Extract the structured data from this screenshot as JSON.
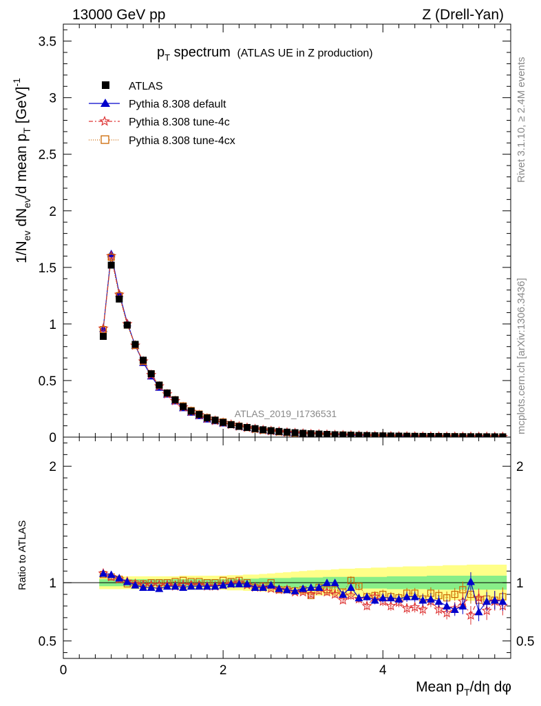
{
  "header": {
    "energy": "13000 GeV pp",
    "process": "Z (Drell-Yan)"
  },
  "side_text": {
    "rivet": "Rivet 3.1.10, ≥ 2.4M events",
    "mcplots": "mcplots.cern.ch [arXiv:1306.3436]"
  },
  "colors": {
    "atlas": "#000000",
    "default": "#0000cc",
    "tune4c": "#dd3333",
    "tune4cx": "#cc6600",
    "band_inner": "#88ee88",
    "band_outer": "#ffff88"
  },
  "chart_data": [
    {
      "type": "line",
      "panel": "main",
      "title_main": "p",
      "title_sub": "T",
      "title_rest": " spectrum",
      "title_note": "(ATLAS UE in Z production)",
      "ylabel": "1/N_ev dN_ev/d mean p_T [GeV]^-1",
      "analysis_label": "ATLAS_2019_I1736531",
      "xlim": [
        0,
        5.6
      ],
      "ylim": [
        0,
        3.65
      ],
      "yticks": [
        0,
        0.5,
        1,
        1.5,
        2,
        2.5,
        3,
        3.5
      ],
      "ytick_labels": [
        "0",
        "0.5",
        "1",
        "1.5",
        "2",
        "2.5",
        "3",
        "3.5"
      ],
      "legend_position": "top-left",
      "x": [
        0.5,
        0.6,
        0.7,
        0.8,
        0.9,
        1.0,
        1.1,
        1.2,
        1.3,
        1.4,
        1.5,
        1.6,
        1.7,
        1.8,
        1.9,
        2.0,
        2.1,
        2.2,
        2.3,
        2.4,
        2.5,
        2.6,
        2.7,
        2.8,
        2.9,
        3.0,
        3.1,
        3.2,
        3.3,
        3.4,
        3.5,
        3.6,
        3.7,
        3.8,
        3.9,
        4.0,
        4.1,
        4.2,
        4.3,
        4.4,
        4.5,
        4.6,
        4.7,
        4.8,
        4.9,
        5.0,
        5.1,
        5.2,
        5.3,
        5.4,
        5.5
      ],
      "series": [
        {
          "name": "ATLAS",
          "marker": "square",
          "values": [
            0.89,
            1.52,
            1.22,
            0.99,
            0.82,
            0.68,
            0.56,
            0.46,
            0.39,
            0.33,
            0.27,
            0.23,
            0.2,
            0.17,
            0.15,
            0.13,
            0.11,
            0.095,
            0.085,
            0.075,
            0.065,
            0.057,
            0.05,
            0.044,
            0.039,
            0.034,
            0.03,
            0.027,
            0.024,
            0.021,
            0.019,
            0.017,
            0.015,
            0.014,
            0.012,
            0.011,
            0.01,
            0.009,
            0.008,
            0.007,
            0.0065,
            0.006,
            0.0055,
            0.005,
            0.0045,
            0.004,
            0.0037,
            0.0034,
            0.0031,
            0.0028,
            0.0025
          ]
        },
        {
          "name": "Pythia 8.308 default",
          "marker": "triangle",
          "values": [
            0.96,
            1.62,
            1.27,
            1.01,
            0.81,
            0.66,
            0.54,
            0.44,
            0.38,
            0.32,
            0.26,
            0.22,
            0.19,
            0.16,
            0.145,
            0.125,
            0.11,
            0.095,
            0.085,
            0.072,
            0.063,
            0.055,
            0.048,
            0.042,
            0.037,
            0.032,
            0.028,
            0.026,
            0.024,
            0.021,
            0.018,
            0.016,
            0.013,
            0.012,
            0.01,
            0.009,
            0.008,
            0.007,
            0.006,
            0.006,
            0.0055,
            0.005,
            0.0045,
            0.004,
            0.0035,
            0.003,
            0.0037,
            0.0025,
            0.0027,
            0.0024,
            0.0021
          ]
        },
        {
          "name": "Pythia 8.308 tune-4c",
          "marker": "star",
          "values": [
            0.96,
            1.6,
            1.26,
            1.0,
            0.81,
            0.67,
            0.55,
            0.45,
            0.38,
            0.32,
            0.265,
            0.225,
            0.195,
            0.165,
            0.145,
            0.127,
            0.11,
            0.095,
            0.083,
            0.072,
            0.062,
            0.054,
            0.048,
            0.041,
            0.036,
            0.031,
            0.027,
            0.025,
            0.022,
            0.019,
            0.017,
            0.015,
            0.013,
            0.011,
            0.01,
            0.009,
            0.008,
            0.007,
            0.006,
            0.0055,
            0.005,
            0.0047,
            0.0042,
            0.0037,
            0.0035,
            0.003,
            0.0029,
            0.0027,
            0.0024,
            0.0024,
            0.002
          ]
        },
        {
          "name": "Pythia 8.308 tune-4cx",
          "marker": "open-square",
          "values": [
            0.95,
            1.59,
            1.25,
            0.99,
            0.81,
            0.67,
            0.56,
            0.46,
            0.39,
            0.33,
            0.276,
            0.235,
            0.204,
            0.173,
            0.15,
            0.134,
            0.111,
            0.097,
            0.085,
            0.072,
            0.063,
            0.057,
            0.047,
            0.042,
            0.036,
            0.031,
            0.028,
            0.026,
            0.023,
            0.02,
            0.019,
            0.017,
            0.014,
            0.012,
            0.011,
            0.0098,
            0.0088,
            0.0078,
            0.0069,
            0.0064,
            0.0059,
            0.0054,
            0.0049,
            0.0043,
            0.0041,
            0.0036,
            0.0031,
            0.0029,
            0.0027,
            0.0024,
            0.0022
          ]
        }
      ]
    },
    {
      "type": "line",
      "panel": "ratio",
      "ylabel": "Ratio to ATLAS",
      "xlabel": "Mean p_T/dη dφ",
      "xlim": [
        0,
        5.6
      ],
      "ylim": [
        0.35,
        2.25
      ],
      "xticks": [
        0,
        2,
        4
      ],
      "xtick_labels": [
        "0",
        "2",
        "4"
      ],
      "yticks": [
        0.5,
        1,
        2
      ],
      "ytick_labels": [
        "0.5",
        "1",
        "2"
      ],
      "x": [
        0.5,
        0.6,
        0.7,
        0.8,
        0.9,
        1.0,
        1.1,
        1.2,
        1.3,
        1.4,
        1.5,
        1.6,
        1.7,
        1.8,
        1.9,
        2.0,
        2.1,
        2.2,
        2.3,
        2.4,
        2.5,
        2.6,
        2.7,
        2.8,
        2.9,
        3.0,
        3.1,
        3.2,
        3.3,
        3.4,
        3.5,
        3.6,
        3.7,
        3.8,
        3.9,
        4.0,
        4.1,
        4.2,
        4.3,
        4.4,
        4.5,
        4.6,
        4.7,
        4.8,
        4.9,
        5.0,
        5.1,
        5.2,
        5.3,
        5.4,
        5.5
      ],
      "band_inner": [
        0.03,
        0.03,
        0.03,
        0.03,
        0.03,
        0.03,
        0.03,
        0.03,
        0.03,
        0.03,
        0.03,
        0.03,
        0.03,
        0.03,
        0.03,
        0.03,
        0.035,
        0.035,
        0.035,
        0.035,
        0.04,
        0.04,
        0.04,
        0.04,
        0.045,
        0.045,
        0.045,
        0.045,
        0.05,
        0.05,
        0.05,
        0.05,
        0.05,
        0.05,
        0.05,
        0.05,
        0.055,
        0.055,
        0.055,
        0.055,
        0.055,
        0.06,
        0.06,
        0.06,
        0.06,
        0.06,
        0.06,
        0.06,
        0.06,
        0.06,
        0.06
      ],
      "band_outer": [
        0.055,
        0.055,
        0.055,
        0.055,
        0.055,
        0.055,
        0.055,
        0.055,
        0.055,
        0.055,
        0.06,
        0.06,
        0.06,
        0.06,
        0.06,
        0.06,
        0.065,
        0.065,
        0.07,
        0.07,
        0.075,
        0.08,
        0.085,
        0.09,
        0.095,
        0.1,
        0.105,
        0.11,
        0.11,
        0.115,
        0.12,
        0.12,
        0.125,
        0.125,
        0.13,
        0.13,
        0.135,
        0.135,
        0.14,
        0.14,
        0.14,
        0.145,
        0.145,
        0.15,
        0.15,
        0.15,
        0.155,
        0.155,
        0.155,
        0.155,
        0.155
      ],
      "series": [
        {
          "name": "Pythia 8.308 default",
          "marker": "triangle",
          "values": [
            1.08,
            1.07,
            1.04,
            1.01,
            0.98,
            0.96,
            0.96,
            0.95,
            0.97,
            0.97,
            0.96,
            0.97,
            0.97,
            0.97,
            0.97,
            0.98,
            0.99,
            0.99,
            0.99,
            0.96,
            0.96,
            0.98,
            0.95,
            0.94,
            0.93,
            0.95,
            0.96,
            0.96,
            1.0,
            1.0,
            0.9,
            0.96,
            0.87,
            0.88,
            0.85,
            0.87,
            0.87,
            0.86,
            0.88,
            0.88,
            0.85,
            0.86,
            0.84,
            0.8,
            0.77,
            0.8,
            1.01,
            0.75,
            0.84,
            0.85,
            0.84
          ],
          "errors": [
            0.01,
            0.01,
            0.01,
            0.01,
            0.01,
            0.01,
            0.01,
            0.01,
            0.01,
            0.01,
            0.01,
            0.01,
            0.01,
            0.01,
            0.01,
            0.01,
            0.01,
            0.01,
            0.01,
            0.01,
            0.01,
            0.015,
            0.015,
            0.02,
            0.02,
            0.025,
            0.025,
            0.03,
            0.03,
            0.03,
            0.03,
            0.035,
            0.035,
            0.035,
            0.035,
            0.04,
            0.04,
            0.04,
            0.045,
            0.045,
            0.05,
            0.05,
            0.05,
            0.055,
            0.055,
            0.07,
            0.08,
            0.08,
            0.08,
            0.08,
            0.08
          ]
        },
        {
          "name": "Pythia 8.308 tune-4c",
          "marker": "star",
          "values": [
            1.08,
            1.05,
            1.03,
            1.01,
            0.99,
            0.98,
            0.98,
            0.98,
            0.98,
            0.97,
            0.98,
            0.98,
            0.98,
            0.97,
            0.97,
            0.98,
            0.99,
            1.0,
            0.98,
            0.96,
            0.96,
            0.95,
            0.94,
            0.94,
            0.92,
            0.92,
            0.9,
            0.93,
            0.92,
            0.9,
            0.85,
            0.89,
            0.86,
            0.8,
            0.88,
            0.84,
            0.8,
            0.83,
            0.78,
            0.79,
            0.77,
            0.84,
            0.77,
            0.74,
            0.78,
            0.84,
            0.72,
            0.87,
            0.76,
            0.84,
            0.8
          ],
          "errors": [
            0.01,
            0.01,
            0.01,
            0.01,
            0.01,
            0.01,
            0.01,
            0.01,
            0.01,
            0.01,
            0.01,
            0.01,
            0.01,
            0.01,
            0.01,
            0.01,
            0.01,
            0.01,
            0.01,
            0.01,
            0.01,
            0.015,
            0.015,
            0.02,
            0.02,
            0.025,
            0.025,
            0.03,
            0.03,
            0.03,
            0.03,
            0.035,
            0.035,
            0.035,
            0.035,
            0.04,
            0.04,
            0.04,
            0.045,
            0.045,
            0.05,
            0.05,
            0.05,
            0.055,
            0.055,
            0.07,
            0.08,
            0.08,
            0.08,
            0.08,
            0.08
          ]
        },
        {
          "name": "Pythia 8.308 tune-4cx",
          "marker": "open-square",
          "values": [
            1.07,
            1.05,
            1.03,
            0.99,
            0.99,
            0.99,
            1.0,
            1.0,
            1.0,
            1.01,
            1.02,
            1.01,
            1.01,
            1.0,
            1.0,
            1.02,
            1.01,
            1.02,
            1.0,
            0.96,
            0.97,
            1.0,
            0.94,
            0.94,
            0.93,
            0.94,
            0.89,
            0.96,
            0.94,
            0.94,
            0.92,
            1.02,
            0.97,
            0.88,
            0.89,
            0.9,
            0.88,
            0.87,
            0.91,
            0.91,
            0.86,
            0.91,
            0.89,
            0.87,
            0.9,
            0.94,
            0.9,
            0.85,
            0.86,
            0.85,
            0.88
          ],
          "errors": [
            0.01,
            0.01,
            0.01,
            0.01,
            0.01,
            0.01,
            0.01,
            0.01,
            0.01,
            0.01,
            0.01,
            0.01,
            0.01,
            0.01,
            0.01,
            0.01,
            0.01,
            0.01,
            0.01,
            0.01,
            0.01,
            0.015,
            0.015,
            0.02,
            0.02,
            0.025,
            0.025,
            0.03,
            0.03,
            0.03,
            0.03,
            0.035,
            0.035,
            0.035,
            0.035,
            0.04,
            0.04,
            0.04,
            0.045,
            0.045,
            0.05,
            0.05,
            0.05,
            0.055,
            0.055,
            0.07,
            0.08,
            0.08,
            0.08,
            0.08,
            0.08
          ]
        }
      ]
    }
  ]
}
